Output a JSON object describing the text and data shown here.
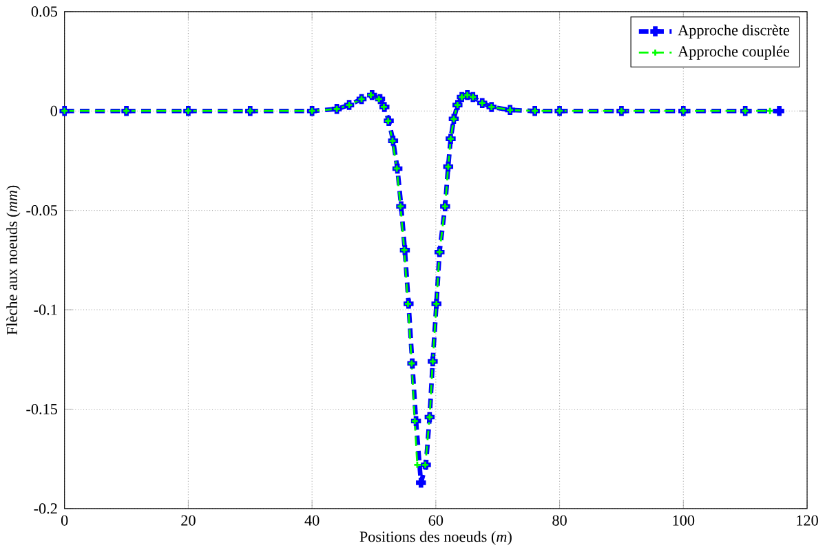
{
  "chart_data": {
    "type": "line",
    "xlabel": "Positions des noeuds (*m*)",
    "ylabel": "Flèche aux noeuds (*mm*)",
    "xlim": [
      0,
      120
    ],
    "ylim": [
      -0.2,
      0.05
    ],
    "xticks": [
      0,
      20,
      40,
      60,
      80,
      100,
      120
    ],
    "yticks": [
      -0.2,
      -0.15,
      -0.1,
      -0.05,
      0,
      0.05
    ],
    "grid": true,
    "legend": "top right",
    "series": [
      {
        "name": "Approche discrète",
        "color": "#0000ff",
        "marker": "cross",
        "line_style": "dashed",
        "x": [
          0,
          10,
          20,
          30,
          40,
          44,
          46,
          48,
          49.7,
          51,
          51.7,
          52.4,
          53.1,
          53.8,
          54.4,
          55.0,
          55.6,
          56.2,
          56.8,
          57.6,
          58.4,
          59.0,
          59.5,
          60.1,
          60.6,
          61.5,
          62.0,
          62.4,
          62.9,
          63.5,
          64.2,
          65.1,
          66,
          67.5,
          69,
          72,
          76,
          80,
          90,
          100,
          110,
          115.5
        ],
        "values": [
          0,
          0,
          0,
          0,
          0,
          0.001,
          0.003,
          0.006,
          0.008,
          0.006,
          0.002,
          -0.005,
          -0.015,
          -0.029,
          -0.048,
          -0.07,
          -0.097,
          -0.127,
          -0.156,
          -0.187,
          -0.178,
          -0.154,
          -0.126,
          -0.097,
          -0.071,
          -0.048,
          -0.028,
          -0.014,
          -0.004,
          0.003,
          0.007,
          0.008,
          0.007,
          0.004,
          0.002,
          0.0005,
          0,
          0,
          0,
          0,
          0,
          0
        ]
      },
      {
        "name": "Approche couplée",
        "color": "#00ff00",
        "marker": "cross",
        "line_style": "dashed",
        "x": [
          0,
          10,
          20,
          30,
          40,
          44,
          46,
          48,
          49.5,
          50.8,
          51.6,
          52.3,
          53.0,
          53.7,
          54.3,
          54.9,
          55.5,
          56.1,
          56.6,
          57.0,
          58.3,
          59.0,
          59.5,
          60.1,
          60.6,
          61.5,
          62.0,
          62.4,
          62.9,
          63.5,
          64.2,
          65.1,
          66,
          67.5,
          69,
          72,
          76,
          80,
          90,
          100,
          110,
          114
        ],
        "values": [
          0,
          0,
          0,
          0,
          0,
          0.001,
          0.003,
          0.006,
          0.008,
          0.006,
          0.002,
          -0.005,
          -0.015,
          -0.029,
          -0.048,
          -0.07,
          -0.097,
          -0.127,
          -0.156,
          -0.178,
          -0.178,
          -0.154,
          -0.126,
          -0.097,
          -0.071,
          -0.048,
          -0.028,
          -0.014,
          -0.004,
          0.003,
          0.007,
          0.008,
          0.007,
          0.004,
          0.002,
          0.0005,
          0,
          0,
          0,
          0,
          0,
          0
        ]
      }
    ]
  }
}
